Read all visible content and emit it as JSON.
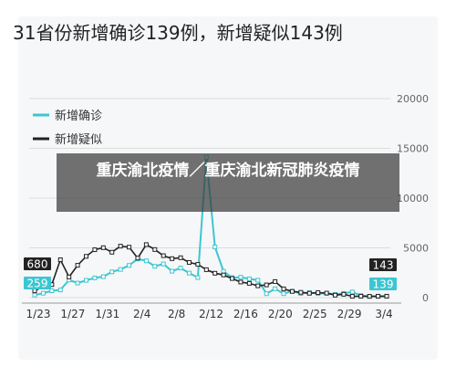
{
  "headline": "31省份新增确诊139例，新增疑似143例",
  "overlay_caption": "重庆渝北疫情／重庆渝北新冠肺炎疫情",
  "colors": {
    "confirmed": "#3cc6d2",
    "suspected": "#222222",
    "label_confirmed_bg": "#3cc6d2",
    "label_suspected_bg": "#222222"
  },
  "chart_data": {
    "type": "line",
    "x_tick_labels": [
      "1/23",
      "1/27",
      "1/31",
      "2/4",
      "2/8",
      "2/12",
      "2/16",
      "2/20",
      "2/25",
      "2/29",
      "3/4"
    ],
    "ylim": [
      0,
      20000
    ],
    "y_tick_labels": [
      "0",
      "5000",
      "10000",
      "15000",
      "20000"
    ],
    "legend": [
      "新增确诊",
      "新增疑似"
    ],
    "legend_position": "top-left",
    "start_label": {
      "suspected": "680",
      "confirmed": "259"
    },
    "end_label": {
      "suspected": "143",
      "confirmed": "139"
    },
    "series": [
      {
        "name": "新增确诊",
        "values": [
          259,
          444,
          688,
          769,
          1771,
          1459,
          1737,
          1981,
          2102,
          2590,
          2829,
          3235,
          3887,
          3694,
          3143,
          3385,
          2652,
          2973,
          2467,
          2015,
          14108,
          5090,
          2641,
          2008,
          2048,
          1886,
          1749,
          394,
          889,
          397,
          648,
          409,
          508,
          406,
          433,
          327,
          427,
          573,
          202,
          125,
          119,
          139
        ],
        "dates": [
          "1/23",
          "1/24",
          "1/25",
          "1/26",
          "1/27",
          "1/28",
          "1/29",
          "1/30",
          "1/31",
          "2/1",
          "2/2",
          "2/3",
          "2/4",
          "2/5",
          "2/6",
          "2/7",
          "2/8",
          "2/9",
          "2/10",
          "2/11",
          "2/12",
          "2/13",
          "2/14",
          "2/15",
          "2/16",
          "2/17",
          "2/18",
          "2/19",
          "2/20",
          "2/21",
          "2/22",
          "2/23",
          "2/24",
          "2/25",
          "2/26",
          "2/27",
          "2/28",
          "2/29",
          "3/1",
          "3/2",
          "3/3",
          "3/4"
        ]
      },
      {
        "name": "新增疑似",
        "values": [
          680,
          1118,
          1309,
          3806,
          2077,
          3248,
          4148,
          4812,
          5019,
          4562,
          5173,
          5072,
          3971,
          5328,
          4833,
          4214,
          3916,
          4008,
          3536,
          3342,
          2807,
          2450,
          2277,
          1918,
          1563,
          1432,
          1185,
          1277,
          1614,
          882,
          620,
          530,
          439,
          508,
          452,
          248,
          335,
          132,
          141,
          129,
          143,
          143
        ],
        "dates": [
          "1/23",
          "1/24",
          "1/25",
          "1/26",
          "1/27",
          "1/28",
          "1/29",
          "1/30",
          "1/31",
          "2/1",
          "2/2",
          "2/3",
          "2/4",
          "2/5",
          "2/6",
          "2/7",
          "2/8",
          "2/9",
          "2/10",
          "2/11",
          "2/12",
          "2/13",
          "2/14",
          "2/15",
          "2/16",
          "2/17",
          "2/18",
          "2/19",
          "2/20",
          "2/21",
          "2/22",
          "2/23",
          "2/24",
          "2/25",
          "2/26",
          "2/27",
          "2/28",
          "2/29",
          "3/1",
          "3/2",
          "3/3",
          "3/4"
        ]
      }
    ]
  }
}
